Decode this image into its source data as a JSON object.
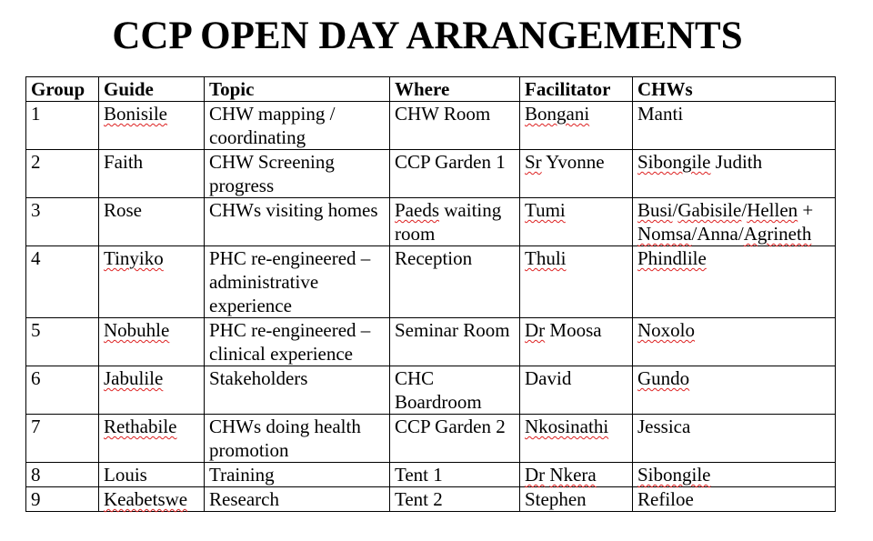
{
  "title": "CCP OPEN DAY ARRANGEMENTS",
  "columns": [
    "Group",
    "Guide",
    "Topic",
    "Where",
    "Facilitator",
    "CHWs"
  ],
  "rows": [
    [
      "1",
      "Bonisile",
      "CHW mapping / coordinating",
      "CHW Room",
      "Bongani",
      "Manti"
    ],
    [
      "2",
      "Faith",
      "CHW Screening progress",
      "CCP Garden 1",
      "Sr Yvonne",
      "Sibongile Judith"
    ],
    [
      "3",
      "Rose",
      "CHWs visiting homes",
      "Paeds waiting room",
      "Tumi",
      "Busi/Gabisile/Hellen + Nomsa/Anna/Agrineth"
    ],
    [
      "4",
      "Tinyiko",
      "PHC re-engineered – administrative experience",
      "Reception",
      "Thuli",
      "Phindlile"
    ],
    [
      "5",
      "Nobuhle",
      "PHC re-engineered – clinical experience",
      "Seminar Room",
      "Dr Moosa",
      "Noxolo"
    ],
    [
      "6",
      "Jabulile",
      "Stakeholders",
      "CHC Boardroom",
      "David",
      "Gundo"
    ],
    [
      "7",
      "Rethabile",
      "CHWs doing health promotion",
      "CCP Garden 2",
      "Nkosinathi",
      "Jessica"
    ],
    [
      "8",
      "Louis",
      "Training",
      "Tent 1",
      "Dr Nkera",
      "Sibongile"
    ],
    [
      "9",
      "Keabetswe",
      "Research",
      "Tent 2",
      "Stephen",
      "Refiloe"
    ]
  ]
}
